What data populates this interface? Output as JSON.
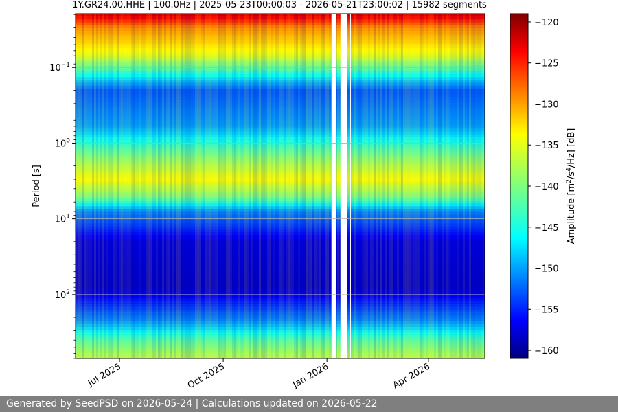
{
  "chart_data": {
    "type": "heatmap",
    "title": "1Y.GR24.00.HHE | 100.0Hz | 2025-05-23T00:00:03 - 2026-05-21T23:00:02 | 15982 segments",
    "ylabel": "Period [s]",
    "y_scale": "log",
    "ylim": [
      0.0195,
      700
    ],
    "y_ticks": [
      {
        "value": 0.1,
        "base": "10",
        "exp": "−1"
      },
      {
        "value": 1,
        "base": "10",
        "exp": "0"
      },
      {
        "value": 10,
        "base": "10",
        "exp": "1"
      },
      {
        "value": 100,
        "base": "10",
        "exp": "2"
      }
    ],
    "x_ticks": [
      {
        "date": "2025-07-01",
        "label": "Jul 2025"
      },
      {
        "date": "2025-10-01",
        "label": "Oct 2025"
      },
      {
        "date": "2026-01-01",
        "label": "Jan 2026"
      },
      {
        "date": "2026-04-01",
        "label": "Apr 2026"
      }
    ],
    "x_start": "2025-05-23",
    "x_end": "2026-05-21",
    "data_gaps": [
      [
        "2026-01-05",
        "2026-01-09"
      ],
      [
        "2026-01-13",
        "2026-01-19"
      ],
      [
        "2026-01-21",
        "2026-01-22"
      ]
    ],
    "grid": true,
    "colormap": "jet",
    "colorbar": {
      "label_text": "Amplitude [m",
      "label_sup1": "2",
      "label_mid": "/s",
      "label_sup2": "4",
      "label_end": "/Hz] [dB]",
      "range": [
        -161,
        -119
      ],
      "ticks": [
        -120,
        -125,
        -130,
        -135,
        -140,
        -145,
        -150,
        -155,
        -160
      ],
      "tick_labels": [
        "−120",
        "−125",
        "−130",
        "−135",
        "−140",
        "−145",
        "−150",
        "−155",
        "−160"
      ]
    },
    "approx_mean_amplitude_by_period": [
      {
        "period_s": 0.02,
        "db": -122
      },
      {
        "period_s": 0.03,
        "db": -130
      },
      {
        "period_s": 0.07,
        "db": -136
      },
      {
        "period_s": 0.2,
        "db": -152
      },
      {
        "period_s": 0.6,
        "db": -149
      },
      {
        "period_s": 1.5,
        "db": -140
      },
      {
        "period_s": 3,
        "db": -135
      },
      {
        "period_s": 5,
        "db": -140
      },
      {
        "period_s": 8,
        "db": -150
      },
      {
        "period_s": 20,
        "db": -157
      },
      {
        "period_s": 80,
        "db": -158
      },
      {
        "period_s": 220,
        "db": -150
      },
      {
        "period_s": 400,
        "db": -142
      },
      {
        "period_s": 650,
        "db": -138
      }
    ]
  },
  "footer": {
    "text": "Generated by SeedPSD on 2026-05-24 | Calculations updated on 2026-05-22"
  }
}
